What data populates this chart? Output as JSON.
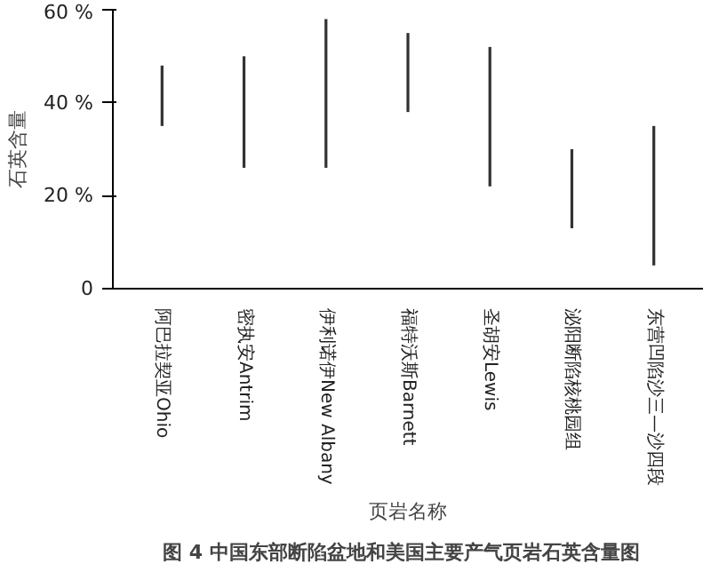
{
  "chart_data": {
    "type": "bar",
    "ylabel": "石英含量",
    "xlabel": "页岩名称",
    "categories": [
      "阿巴拉契亚Ohio",
      "密执安Antrim",
      "伊利诺伊New Albany",
      "福特沃斯Barnett",
      "圣胡安Lewis",
      "泌阳断陷核桃园组",
      "东营凹陷沙三—沙四段"
    ],
    "base": [
      35,
      26,
      26,
      38,
      22,
      13,
      5
    ],
    "values": [
      13,
      24,
      32,
      17,
      30,
      17,
      30
    ],
    "color": "#333333",
    "ylim": [
      0,
      60
    ],
    "yticks": [
      0,
      {
        "value": 20,
        "label": "20 %"
      },
      {
        "value": 40,
        "label": "40 %"
      },
      {
        "value": 60,
        "label": "60 %"
      }
    ],
    "grid": false,
    "annotations": [
      "图 4   中国东部断陷盆地和美国主要产气页岩石英含量图"
    ]
  }
}
